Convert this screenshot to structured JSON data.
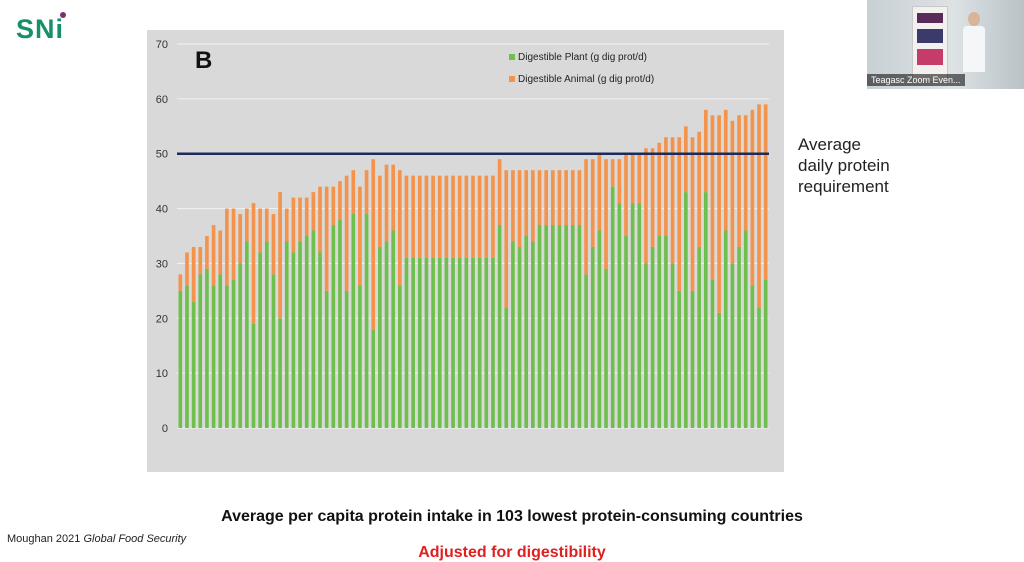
{
  "logo": {
    "text": "SNi",
    "accent": "#17906a",
    "dot_color": "#7a2f6e"
  },
  "video_tile": {
    "name_label": "Teagasc Zoom Even..."
  },
  "annotation": {
    "lines": [
      "Average",
      "daily protein",
      "requirement"
    ]
  },
  "caption": "Average per capita protein intake in 103 lowest protein-consuming countries",
  "citation": {
    "author_year": "Moughan 2021",
    "journal": "Global Food Security"
  },
  "cutoff_text": "Adjusted for digestibility",
  "chart_data": {
    "type": "bar",
    "stacked": true,
    "panel_label": "B",
    "ylim": [
      0,
      70
    ],
    "yticks": [
      0,
      10,
      20,
      30,
      40,
      50,
      60,
      70
    ],
    "grid": true,
    "legend_position": "top",
    "reference_line": {
      "value": 50,
      "color": "#1f2a5a"
    },
    "series": [
      {
        "name": "Digestible Plant (g dig prot/d)",
        "color": "#6fbf4f",
        "values": [
          25,
          26,
          23,
          28,
          29,
          26,
          28,
          26,
          27,
          30,
          34,
          19,
          32,
          34,
          28,
          20,
          34,
          32,
          34,
          35,
          36,
          32,
          25,
          37,
          38,
          25,
          39,
          26,
          39,
          18,
          33,
          34,
          36,
          26,
          31,
          31,
          31,
          31,
          31,
          31,
          31,
          31,
          31,
          31,
          31,
          31,
          31,
          31,
          37,
          22,
          34,
          33,
          35,
          34,
          37,
          37,
          37,
          37,
          37,
          37,
          37,
          28,
          33,
          36,
          29,
          44,
          41,
          35,
          41,
          41,
          30,
          33,
          35,
          35,
          30,
          25,
          43,
          25,
          33,
          43,
          27,
          21,
          36,
          30,
          33,
          36,
          26,
          22,
          27
        ]
      },
      {
        "name": "Digestible Animal (g dig prot/d)",
        "color": "#f4944c",
        "values": [
          3,
          6,
          10,
          5,
          6,
          11,
          8,
          14,
          13,
          9,
          6,
          22,
          8,
          6,
          11,
          23,
          6,
          10,
          8,
          7,
          7,
          12,
          19,
          7,
          7,
          21,
          8,
          18,
          8,
          31,
          13,
          14,
          12,
          21,
          15,
          15,
          15,
          15,
          15,
          15,
          15,
          15,
          15,
          15,
          15,
          15,
          15,
          15,
          12,
          25,
          13,
          14,
          12,
          13,
          10,
          10,
          10,
          10,
          10,
          10,
          10,
          21,
          16,
          14,
          20,
          5,
          8,
          15,
          9,
          9,
          21,
          18,
          17,
          18,
          23,
          28,
          12,
          28,
          21,
          15,
          30,
          36,
          22,
          26,
          24,
          21,
          32,
          37,
          32
        ]
      }
    ]
  }
}
